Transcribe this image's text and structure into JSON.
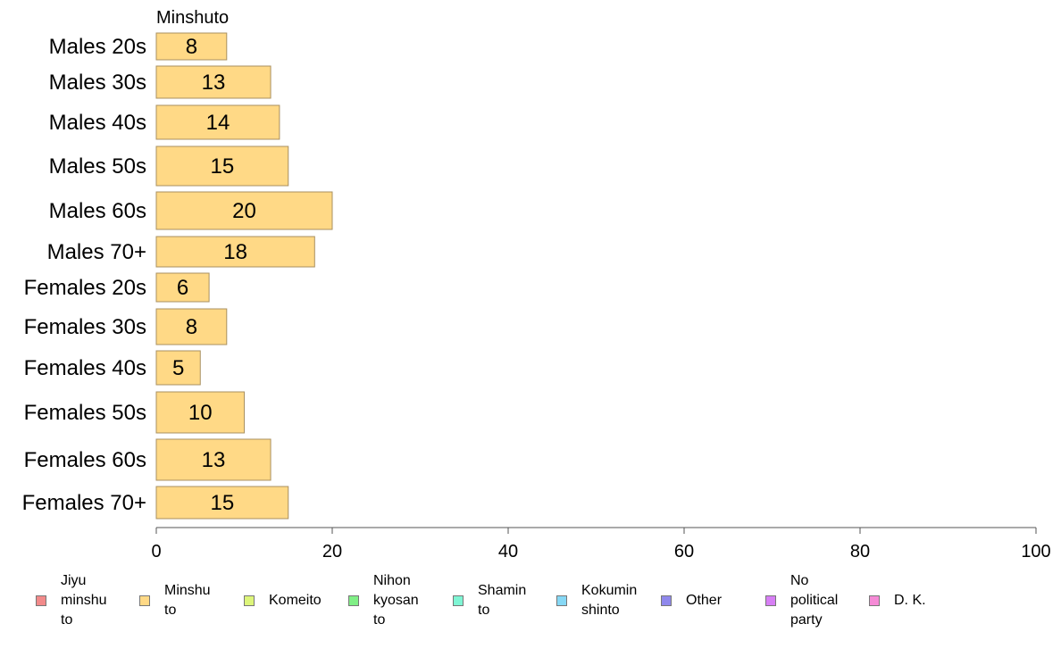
{
  "chart_data": {
    "type": "bar",
    "orientation": "horizontal",
    "title": "Minshuto",
    "categories": [
      "Males 20s",
      "Males 30s",
      "Males 40s",
      "Males 50s",
      "Males 60s",
      "Males 70+",
      "Females 20s",
      "Females 30s",
      "Females 40s",
      "Females 50s",
      "Females 60s",
      "Females 70+"
    ],
    "values": [
      8,
      13,
      14,
      15,
      20,
      18,
      6,
      8,
      5,
      10,
      13,
      15
    ],
    "series": [
      {
        "name": "Minshuto",
        "color": "#ffd986",
        "values": [
          8,
          13,
          14,
          15,
          20,
          18,
          6,
          8,
          5,
          10,
          13,
          15
        ]
      }
    ],
    "xlim": [
      0,
      100
    ],
    "xticks": [
      "0",
      "20",
      "40",
      "60",
      "80",
      "100"
    ],
    "grid": false,
    "legend_position": "bottom"
  },
  "legend": [
    {
      "label": "Jiyu\nminshu\nto",
      "color": "#f28a8a"
    },
    {
      "label": "Minshu\nto",
      "color": "#ffd986"
    },
    {
      "label": "Komeito",
      "color": "#ddf57a"
    },
    {
      "label": "Nihon\nkyosan\nto",
      "color": "#80ef86"
    },
    {
      "label": "Shamin\nto",
      "color": "#7ff5d4"
    },
    {
      "label": "Kokumin\nshinto",
      "color": "#86d8f5"
    },
    {
      "label": "Other",
      "color": "#8f88ec"
    },
    {
      "label": "No\npolitical\nparty",
      "color": "#d77ff5"
    },
    {
      "label": "D. K.",
      "color": "#f58ad6"
    }
  ]
}
